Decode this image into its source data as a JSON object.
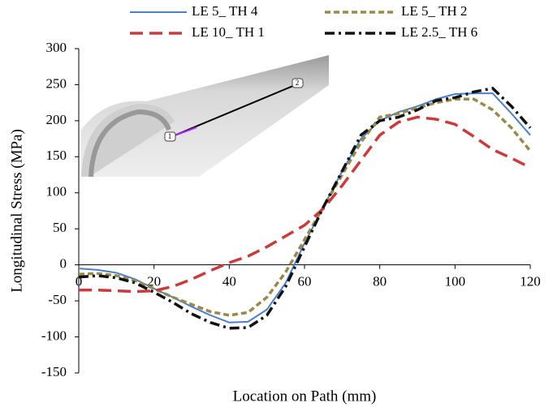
{
  "chart_data": {
    "type": "line",
    "x_label": "Location on Path (mm)",
    "y_label": "Longitudinal Stress (MPa)",
    "x": [
      0,
      5,
      10,
      15,
      20,
      25,
      30,
      35,
      40,
      45,
      50,
      55,
      60,
      65,
      70,
      75,
      80,
      85,
      90,
      95,
      100,
      105,
      110,
      115,
      120
    ],
    "series": [
      {
        "name": "LE 5_ TH 4",
        "color": "#4a7fd0",
        "dash": "",
        "width": 2,
        "values": [
          -5,
          -7,
          -11,
          -20,
          -33,
          -45,
          -58,
          -70,
          -80,
          -79,
          -62,
          -25,
          30,
          80,
          130,
          175,
          200,
          212,
          220,
          230,
          237,
          238,
          238,
          210,
          180
        ]
      },
      {
        "name": "LE 5_ TH 2",
        "color": "#9a8a4a",
        "dash": "7 4",
        "width": 3.5,
        "values": [
          -13,
          -12,
          -15,
          -22,
          -33,
          -45,
          -55,
          -65,
          -70,
          -66,
          -45,
          -10,
          35,
          80,
          125,
          170,
          205,
          210,
          218,
          225,
          230,
          230,
          215,
          190,
          158
        ]
      },
      {
        "name": "LE 10_ TH 1",
        "color": "#cc3b3b",
        "dash": "16 8",
        "width": 3.5,
        "values": [
          -35,
          -35,
          -36,
          -37,
          -36,
          -30,
          -20,
          -8,
          3,
          12,
          25,
          40,
          55,
          78,
          110,
          145,
          180,
          198,
          205,
          202,
          195,
          178,
          160,
          148,
          135
        ]
      },
      {
        "name": "LE 2.5_ TH 6",
        "color": "#111111",
        "dash": "12 5 3 5",
        "width": 3.5,
        "values": [
          -17,
          -15,
          -18,
          -25,
          -38,
          -52,
          -68,
          -80,
          -88,
          -87,
          -70,
          -30,
          25,
          80,
          130,
          180,
          200,
          205,
          215,
          228,
          232,
          240,
          245,
          220,
          190
        ]
      }
    ],
    "xlim": [
      0,
      120
    ],
    "xticks": [
      0,
      20,
      40,
      60,
      80,
      100,
      120
    ],
    "ylim": [
      -150,
      300
    ],
    "yticks": [
      -150,
      -100,
      -50,
      0,
      50,
      100,
      150,
      200,
      250,
      300
    ],
    "inset_labels": [
      "1",
      "2"
    ]
  }
}
